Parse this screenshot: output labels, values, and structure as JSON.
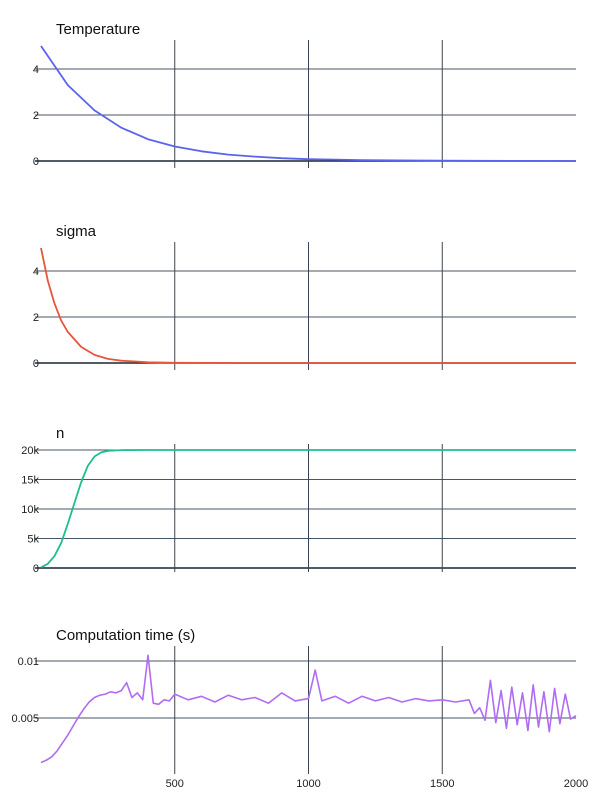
{
  "chart_data": [
    {
      "type": "line",
      "title": "Temperature",
      "xlabel": "",
      "ylabel": "",
      "xlim": [
        0,
        2000
      ],
      "ylim": [
        0,
        5.1
      ],
      "x_ticks": [
        500,
        1000,
        1500
      ],
      "x_tick_labels": [
        "500",
        "1000",
        "1500"
      ],
      "y_ticks": [
        0,
        2,
        4
      ],
      "y_tick_labels": [
        "0",
        "2",
        "4"
      ],
      "grid": true,
      "color": "#5b63ee",
      "series": [
        {
          "x": [
            0,
            100,
            200,
            300,
            400,
            500,
            600,
            700,
            800,
            900,
            1000,
            1200,
            1400,
            1600,
            1800,
            2000
          ],
          "y": [
            5.0,
            3.3,
            2.2,
            1.45,
            0.95,
            0.63,
            0.42,
            0.28,
            0.19,
            0.12,
            0.08,
            0.04,
            0.02,
            0.01,
            0.005,
            0.002
          ]
        }
      ]
    },
    {
      "type": "line",
      "title": "sigma",
      "xlabel": "",
      "ylabel": "",
      "xlim": [
        0,
        2000
      ],
      "ylim": [
        0,
        5.1
      ],
      "x_ticks": [
        500,
        1000,
        1500
      ],
      "x_tick_labels": [
        "500",
        "1000",
        "1500"
      ],
      "y_ticks": [
        0,
        2,
        4
      ],
      "y_tick_labels": [
        "0",
        "2",
        "4"
      ],
      "grid": true,
      "color": "#e8553a",
      "series": [
        {
          "x": [
            0,
            25,
            50,
            75,
            100,
            150,
            200,
            250,
            300,
            400,
            500,
            750,
            1000,
            1500,
            2000
          ],
          "y": [
            5.0,
            3.6,
            2.6,
            1.85,
            1.35,
            0.7,
            0.35,
            0.18,
            0.1,
            0.03,
            0.01,
            0.0,
            0.0,
            0.0,
            0.0
          ]
        }
      ]
    },
    {
      "type": "line",
      "title": "n",
      "xlabel": "",
      "ylabel": "",
      "xlim": [
        0,
        2000
      ],
      "ylim": [
        0,
        20000
      ],
      "x_ticks": [
        500,
        1000,
        1500
      ],
      "x_tick_labels": [
        "500",
        "1000",
        "1500"
      ],
      "y_ticks": [
        0,
        5000,
        10000,
        15000,
        20000
      ],
      "y_tick_labels": [
        "0",
        "5k",
        "10k",
        "15k",
        "20k"
      ],
      "grid": true,
      "color": "#1cbf91",
      "series": [
        {
          "x": [
            0,
            25,
            50,
            75,
            100,
            125,
            150,
            175,
            200,
            225,
            250,
            300,
            400,
            500,
            1000,
            2000
          ],
          "y": [
            100,
            700,
            2000,
            4200,
            7500,
            11000,
            14500,
            17300,
            18900,
            19600,
            19850,
            19980,
            20000,
            20000,
            20000,
            20000
          ]
        }
      ]
    },
    {
      "type": "line",
      "title": "Computation time (s)",
      "xlabel": "",
      "ylabel": "",
      "xlim": [
        0,
        2000
      ],
      "ylim": [
        0.0004,
        0.0113
      ],
      "x_ticks": [
        500,
        1000,
        1500,
        2000
      ],
      "x_tick_labels": [
        "500",
        "1000",
        "1500",
        "2000"
      ],
      "y_ticks": [
        0.005,
        0.01
      ],
      "y_tick_labels": [
        "0.005",
        "0.01"
      ],
      "grid": true,
      "color": "#b06cf3",
      "series": [
        {
          "x": [
            0,
            20,
            40,
            60,
            80,
            100,
            120,
            140,
            160,
            180,
            200,
            220,
            240,
            260,
            280,
            300,
            320,
            340,
            360,
            380,
            400,
            420,
            440,
            460,
            480,
            500,
            550,
            600,
            650,
            700,
            750,
            800,
            850,
            900,
            950,
            1000,
            1025,
            1050,
            1100,
            1150,
            1200,
            1250,
            1300,
            1350,
            1400,
            1450,
            1500,
            1550,
            1600,
            1620,
            1640,
            1660,
            1680,
            1700,
            1720,
            1740,
            1760,
            1780,
            1800,
            1820,
            1840,
            1860,
            1880,
            1900,
            1920,
            1940,
            1960,
            1980,
            2000
          ],
          "y": [
            0.0011,
            0.0013,
            0.0016,
            0.0021,
            0.0028,
            0.0035,
            0.0043,
            0.0051,
            0.0058,
            0.0064,
            0.0068,
            0.007,
            0.0071,
            0.0073,
            0.0072,
            0.0074,
            0.0081,
            0.0068,
            0.0072,
            0.0066,
            0.0105,
            0.0063,
            0.0062,
            0.0066,
            0.0065,
            0.0071,
            0.0066,
            0.0069,
            0.0064,
            0.007,
            0.0066,
            0.0068,
            0.0063,
            0.0072,
            0.0065,
            0.0067,
            0.0092,
            0.0065,
            0.0069,
            0.0063,
            0.0069,
            0.0065,
            0.0068,
            0.0064,
            0.0067,
            0.0065,
            0.0066,
            0.0064,
            0.0066,
            0.0054,
            0.0059,
            0.0048,
            0.0083,
            0.0046,
            0.0074,
            0.0041,
            0.0077,
            0.0044,
            0.0072,
            0.0039,
            0.0079,
            0.0042,
            0.0073,
            0.0038,
            0.0076,
            0.0045,
            0.0071,
            0.0049,
            0.0052
          ]
        }
      ]
    }
  ]
}
